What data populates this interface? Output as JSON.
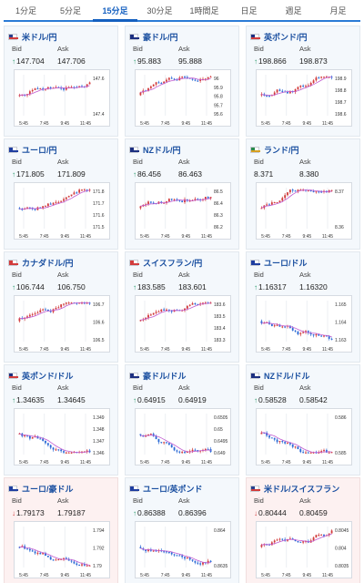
{
  "tabs": [
    {
      "label": "1分足",
      "active": false
    },
    {
      "label": "5分足",
      "active": false
    },
    {
      "label": "15分足",
      "active": true
    },
    {
      "label": "30分足",
      "active": false
    },
    {
      "label": "1時間足",
      "active": false
    },
    {
      "label": "日足",
      "active": false
    },
    {
      "label": "週足",
      "active": false
    },
    {
      "label": "月足",
      "active": false
    }
  ],
  "labels": {
    "bid": "Bid",
    "ask": "Ask"
  },
  "colors": {
    "up": "#d23c3c",
    "down": "#2b6ad6",
    "ma": "#c05ad0",
    "arrow_up": "#2a9a6a",
    "arrow_down": "#d23c3c",
    "accent": "#1560c0"
  },
  "pairs": [
    {
      "name": "米ドル/円",
      "flag": "us",
      "bid": "147.704",
      "ask": "147.706",
      "dir": "up",
      "highlight": false,
      "chart_data": {
        "type": "candlestick",
        "x_ticks": [
          "5:45",
          "7:45",
          "9:45",
          "11:45"
        ],
        "y_ticks": [
          "147.6",
          "147.4"
        ],
        "trend": "up"
      }
    },
    {
      "name": "豪ドル/円",
      "flag": "au",
      "bid": "95.883",
      "ask": "95.888",
      "dir": "up",
      "highlight": false,
      "chart_data": {
        "type": "candlestick",
        "x_ticks": [
          "5:45",
          "7:45",
          "9:45",
          "11:45"
        ],
        "y_ticks": [
          "96",
          "95.9",
          "95.8",
          "95.7",
          "95.6"
        ],
        "trend": "up"
      }
    },
    {
      "name": "英ポンド/円",
      "flag": "uk",
      "bid": "198.866",
      "ask": "198.873",
      "dir": "up",
      "highlight": false,
      "chart_data": {
        "type": "candlestick",
        "x_ticks": [
          "5:45",
          "7:45",
          "9:45",
          "11:45"
        ],
        "y_ticks": [
          "198.9",
          "198.8",
          "198.7",
          "198.6"
        ],
        "trend": "up"
      }
    },
    {
      "name": "ユーロ/円",
      "flag": "eu",
      "bid": "171.805",
      "ask": "171.809",
      "dir": "up",
      "highlight": false,
      "chart_data": {
        "type": "candlestick",
        "x_ticks": [
          "5:45",
          "7:45",
          "9:45",
          "11:45"
        ],
        "y_ticks": [
          "171.8",
          "171.7",
          "171.6",
          "171.5"
        ],
        "trend": "up"
      }
    },
    {
      "name": "NZドル/円",
      "flag": "nz",
      "bid": "86.456",
      "ask": "86.463",
      "dir": "up",
      "highlight": false,
      "chart_data": {
        "type": "candlestick",
        "x_ticks": [
          "5:45",
          "7:45",
          "9:45",
          "11:45"
        ],
        "y_ticks": [
          "86.5",
          "86.4",
          "86.3",
          "86.2"
        ],
        "trend": "up"
      }
    },
    {
      "name": "ランド/円",
      "flag": "za",
      "bid": "8.371",
      "ask": "8.380",
      "dir": "none",
      "highlight": false,
      "chart_data": {
        "type": "candlestick",
        "x_ticks": [
          "5:45",
          "7:45",
          "9:45",
          "11:45"
        ],
        "y_ticks": [
          "8.37",
          "8.36"
        ],
        "trend": "up"
      }
    },
    {
      "name": "カナダドル/円",
      "flag": "ca",
      "bid": "106.744",
      "ask": "106.750",
      "dir": "up",
      "highlight": false,
      "chart_data": {
        "type": "candlestick",
        "x_ticks": [
          "5:45",
          "7:45",
          "9:45",
          "11:45"
        ],
        "y_ticks": [
          "106.7",
          "106.6",
          "106.5"
        ],
        "trend": "up"
      }
    },
    {
      "name": "スイスフラン/円",
      "flag": "ch",
      "bid": "183.585",
      "ask": "183.601",
      "dir": "up",
      "highlight": false,
      "chart_data": {
        "type": "candlestick",
        "x_ticks": [
          "5:45",
          "7:45",
          "9:45",
          "11:45"
        ],
        "y_ticks": [
          "183.6",
          "183.5",
          "183.4",
          "183.3"
        ],
        "trend": "up"
      }
    },
    {
      "name": "ユーロ/ドル",
      "flag": "eu",
      "bid": "1.16317",
      "ask": "1.16320",
      "dir": "up",
      "highlight": false,
      "chart_data": {
        "type": "candlestick",
        "x_ticks": [
          "5:45",
          "7:45",
          "9:45",
          "11:45"
        ],
        "y_ticks": [
          "1.165",
          "1.164",
          "1.163"
        ],
        "trend": "down"
      }
    },
    {
      "name": "英ポンド/ドル",
      "flag": "uk",
      "bid": "1.34635",
      "ask": "1.34645",
      "dir": "up",
      "highlight": false,
      "chart_data": {
        "type": "candlestick",
        "x_ticks": [
          "5:45",
          "7:45",
          "9:45",
          "11:45"
        ],
        "y_ticks": [
          "1.349",
          "1.348",
          "1.347",
          "1.346"
        ],
        "trend": "down"
      }
    },
    {
      "name": "豪ドル/ドル",
      "flag": "au",
      "bid": "0.64915",
      "ask": "0.64919",
      "dir": "up",
      "highlight": false,
      "chart_data": {
        "type": "candlestick",
        "x_ticks": [
          "5:45",
          "7:45",
          "9:45",
          "11:45"
        ],
        "y_ticks": [
          "0.6505",
          "0.65",
          "0.6495",
          "0.649"
        ],
        "trend": "down"
      }
    },
    {
      "name": "NZドル/ドル",
      "flag": "nz",
      "bid": "0.58528",
      "ask": "0.58542",
      "dir": "up",
      "highlight": false,
      "chart_data": {
        "type": "candlestick",
        "x_ticks": [
          "5:45",
          "7:45",
          "9:45",
          "11:45"
        ],
        "y_ticks": [
          "0.586",
          "0.585"
        ],
        "trend": "down"
      }
    },
    {
      "name": "ユーロ/豪ドル",
      "flag": "eu",
      "bid": "1.79173",
      "ask": "1.79187",
      "dir": "down",
      "highlight": true,
      "chart_data": {
        "type": "candlestick",
        "x_ticks": [
          "5:45",
          "7:45",
          "9:45",
          "11:45"
        ],
        "y_ticks": [
          "1.794",
          "1.792",
          "1.79"
        ],
        "trend": "down"
      }
    },
    {
      "name": "ユーロ/英ポンド",
      "flag": "eu",
      "bid": "0.86388",
      "ask": "0.86396",
      "dir": "up",
      "highlight": false,
      "chart_data": {
        "type": "candlestick",
        "x_ticks": [
          "5:45",
          "7:45",
          "9:45",
          "11:45"
        ],
        "y_ticks": [
          "0.864",
          "0.8635"
        ],
        "trend": "flat"
      }
    },
    {
      "name": "米ドル/スイスフラン",
      "flag": "us",
      "bid": "0.80444",
      "ask": "0.80459",
      "dir": "down",
      "highlight": true,
      "chart_data": {
        "type": "candlestick",
        "x_ticks": [
          "5:45",
          "7:45",
          "9:45",
          "11:45"
        ],
        "y_ticks": [
          "0.8045",
          "0.804",
          "0.8035"
        ],
        "trend": "up"
      }
    }
  ]
}
